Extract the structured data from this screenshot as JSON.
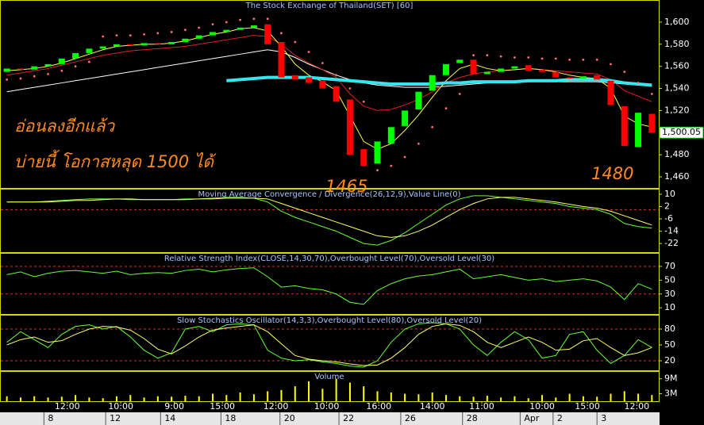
{
  "chart_data": [
    {
      "type": "candlestick",
      "title": "The Stock Exchange of Thailand(SET) [60]",
      "xlim": [
        -0.5,
        47.5
      ],
      "open": [
        1555,
        1558,
        1557,
        1560,
        1562,
        1567,
        1572,
        1576,
        1578,
        1580,
        1579,
        1581,
        1580,
        1582,
        1585,
        1588,
        1591,
        1593,
        1595,
        1598,
        1582,
        1552,
        1550,
        1547,
        1542,
        1530,
        1485,
        1472,
        1490,
        1506,
        1521,
        1538,
        1552,
        1563,
        1566,
        1553,
        1555,
        1558,
        1561,
        1557,
        1555,
        1550,
        1549,
        1552,
        1547,
        1524,
        1487,
        1517
      ],
      "close": [
        1558,
        1557,
        1560,
        1562,
        1567,
        1572,
        1576,
        1578,
        1580,
        1579,
        1581,
        1580,
        1582,
        1585,
        1588,
        1591,
        1593,
        1595,
        1597,
        1580,
        1550,
        1548,
        1545,
        1540,
        1528,
        1480,
        1470,
        1492,
        1505,
        1520,
        1537,
        1552,
        1562,
        1566,
        1553,
        1555,
        1558,
        1560,
        1556,
        1555,
        1550,
        1549,
        1551,
        1548,
        1525,
        1488,
        1518,
        1500
      ],
      "up_color": "#00ff00",
      "down_color": "#ff0000",
      "series": [
        {
          "color": "#ffffff",
          "values": [
            1537,
            1539,
            1541,
            1543,
            1545,
            1547,
            1549,
            1551,
            1553,
            1555,
            1557,
            1559,
            1561,
            1563,
            1565,
            1567,
            1569,
            1571,
            1573,
            1575,
            1573,
            1568,
            1562,
            1557,
            1552,
            1548,
            1545,
            1543,
            1542,
            1541,
            1541,
            1541,
            1542,
            1543,
            1544,
            1545,
            1545,
            1546,
            1546,
            1546,
            1546,
            1546,
            1546,
            1546,
            1545,
            1544,
            1543,
            1542
          ]
        },
        {
          "color": "#e02020",
          "values": [
            1552,
            1554,
            1556,
            1558,
            1561,
            1564,
            1567,
            1570,
            1572,
            1574,
            1575,
            1576,
            1577,
            1578,
            1580,
            1582,
            1584,
            1586,
            1588,
            1587,
            1580,
            1570,
            1563,
            1557,
            1550,
            1535,
            1524,
            1520,
            1521,
            1525,
            1530,
            1537,
            1545,
            1550,
            1553,
            1555,
            1556,
            1557,
            1558,
            1557,
            1556,
            1555,
            1554,
            1553,
            1548,
            1538,
            1533,
            1528
          ]
        },
        {
          "color": "#ffff40",
          "values": [
            1556,
            1557,
            1558,
            1560,
            1563,
            1567,
            1571,
            1575,
            1578,
            1579,
            1580,
            1580,
            1581,
            1583,
            1586,
            1589,
            1591,
            1594,
            1595,
            1592,
            1578,
            1562,
            1552,
            1546,
            1538,
            1515,
            1492,
            1485,
            1490,
            1502,
            1516,
            1532,
            1547,
            1558,
            1562,
            1558,
            1556,
            1557,
            1558,
            1557,
            1555,
            1552,
            1550,
            1549,
            1540,
            1515,
            1508,
            1505
          ]
        },
        {
          "color": "#33e6f0",
          "width": 4,
          "values": [
            null,
            null,
            null,
            null,
            null,
            null,
            null,
            null,
            null,
            null,
            null,
            null,
            null,
            null,
            null,
            null,
            1547,
            1548,
            1549,
            1550,
            1550,
            1550,
            1550,
            1549,
            1548,
            1547,
            1546,
            1545,
            1544,
            1544,
            1544,
            1544,
            1545,
            1545,
            1546,
            1546,
            1546,
            1546,
            1547,
            1547,
            1547,
            1548,
            1548,
            1548,
            1547,
            1545,
            1544,
            1543
          ]
        },
        {
          "color": "#ff7070",
          "style": "dots",
          "values": [
            1548,
            1549,
            1551,
            1553,
            1556,
            1560,
            1564,
            1587,
            1588,
            1588,
            1589,
            1590,
            1591,
            1593,
            1595,
            1598,
            1600,
            1602,
            1603,
            1603,
            1590,
            1582,
            1573,
            1563,
            1552,
            1540,
            1528,
            1466,
            1470,
            1478,
            1490,
            1505,
            1522,
            1535,
            1570,
            1570,
            1569,
            1568,
            1568,
            1567,
            1567,
            1566,
            1566,
            1566,
            1562,
            1555,
            1545,
            1535
          ]
        }
      ],
      "ylim": [
        1450,
        1620
      ],
      "yticks": [
        {
          "value": 1600,
          "label": "1,600"
        },
        {
          "value": 1580,
          "label": "1,580"
        },
        {
          "value": 1560,
          "label": "1,560"
        },
        {
          "value": 1540,
          "label": "1,540"
        },
        {
          "value": 1520,
          "label": "1,520"
        },
        {
          "value": 1500,
          "label": "1,500"
        },
        {
          "value": 1480,
          "label": "1,480"
        },
        {
          "value": 1460,
          "label": "1,460"
        }
      ],
      "last_price": {
        "value": 1500.05,
        "label": "1,500.05"
      },
      "annotations": [
        "อ่อนลงอีกแล้ว",
        "บ่ายนี้ โอกาสหลุด 1500 ได้",
        "1465",
        "1480"
      ]
    },
    {
      "type": "line",
      "title": "Moving Average Convergence / Divergence(26,12,9),Value Line(0)",
      "xlim": [
        -0.5,
        47.5
      ],
      "series": [
        {
          "color": "#66ff33",
          "values": [
            5,
            5,
            5,
            5.5,
            6,
            6.5,
            7,
            7,
            7,
            6.5,
            6.5,
            6.5,
            6.5,
            7,
            7,
            7.5,
            8,
            8,
            7.5,
            5,
            -1,
            -5,
            -8,
            -11,
            -14,
            -18,
            -22,
            -23,
            -20,
            -15,
            -9,
            -3,
            3,
            7,
            9,
            9,
            8,
            7,
            6,
            5,
            4,
            2,
            1,
            0,
            -3,
            -9,
            -11,
            -12
          ]
        },
        {
          "color": "#ffff66",
          "values": [
            5,
            5,
            5,
            5,
            5.5,
            6,
            6,
            6.5,
            7,
            7,
            6.5,
            6.5,
            6.5,
            6.5,
            7,
            7,
            7.5,
            7.5,
            7.5,
            7,
            4,
            1,
            -2,
            -5,
            -8,
            -11,
            -14,
            -17,
            -18,
            -17,
            -14,
            -10,
            -5,
            0,
            4,
            7,
            8,
            8,
            7,
            6,
            5,
            3.5,
            2,
            1,
            -1,
            -4,
            -7,
            -10
          ]
        }
      ],
      "levels": [
        0
      ],
      "ylim": [
        -27.6,
        13.6
      ],
      "yticks": [
        10,
        2,
        -6,
        -14,
        -22
      ]
    },
    {
      "type": "line",
      "title": "Relative Strength Index(CLOSE,14,30,70),Overbought Level(70),Oversold Level(30)",
      "xlim": [
        -0.5,
        47.5
      ],
      "series": [
        {
          "color": "#66ff33",
          "values": [
            58,
            62,
            55,
            60,
            63,
            64,
            62,
            60,
            63,
            58,
            60,
            61,
            60,
            64,
            66,
            62,
            65,
            67,
            68,
            55,
            40,
            42,
            38,
            36,
            30,
            18,
            15,
            35,
            45,
            52,
            56,
            58,
            62,
            66,
            52,
            55,
            58,
            54,
            50,
            52,
            48,
            50,
            52,
            49,
            40,
            22,
            45,
            37
          ]
        }
      ],
      "levels": [
        70,
        30
      ],
      "ylim": [
        1,
        89.5
      ],
      "yticks": [
        70,
        50,
        30,
        10
      ]
    },
    {
      "type": "line",
      "title": "Slow Stochastics Oscillator(14,3,3),Overbought Level(80),Oversold Level(20)",
      "xlim": [
        -0.5,
        47.5
      ],
      "series": [
        {
          "color": "#66ff33",
          "values": [
            55,
            75,
            60,
            45,
            70,
            85,
            88,
            80,
            85,
            65,
            40,
            25,
            35,
            80,
            85,
            75,
            88,
            90,
            88,
            40,
            25,
            20,
            22,
            18,
            15,
            10,
            8,
            20,
            55,
            80,
            90,
            92,
            90,
            80,
            50,
            30,
            55,
            75,
            60,
            25,
            30,
            70,
            75,
            40,
            15,
            30,
            60,
            45
          ]
        },
        {
          "color": "#ffff66",
          "values": [
            50,
            60,
            65,
            55,
            58,
            70,
            80,
            85,
            84,
            78,
            62,
            42,
            33,
            48,
            65,
            78,
            82,
            85,
            88,
            75,
            52,
            30,
            23,
            20,
            18,
            14,
            11,
            12,
            25,
            45,
            70,
            85,
            90,
            87,
            75,
            55,
            45,
            55,
            65,
            55,
            40,
            42,
            58,
            62,
            45,
            30,
            35,
            45
          ]
        }
      ],
      "levels": [
        80,
        20
      ],
      "ylim": [
        2,
        107
      ],
      "yticks": [
        80,
        50,
        20
      ]
    },
    {
      "type": "bar",
      "title": "Volume",
      "color": "#ffff00",
      "xlim": [
        -0.5,
        47.5
      ],
      "values": [
        2,
        1.5,
        2,
        1.5,
        1.8,
        2.5,
        1.5,
        1.2,
        2,
        2.5,
        1.5,
        2,
        1.8,
        2.2,
        2,
        3,
        2.5,
        3.5,
        2.8,
        4,
        4.5,
        6,
        8,
        5,
        9,
        7.5,
        6,
        4,
        3.5,
        3,
        2.8,
        3.5,
        2.5,
        2,
        1.8,
        2.2,
        1.5,
        2,
        1.2,
        2.5,
        1.5,
        3,
        2,
        1.8,
        3,
        4,
        3,
        2.5
      ],
      "ylim": [
        0,
        12.1
      ],
      "yticks": [
        {
          "value": 9,
          "label": "9M"
        },
        {
          "value": 3,
          "label": "3M"
        }
      ],
      "xticks": [
        {
          "value": 4.4,
          "label": "12:00"
        },
        {
          "value": 8.3,
          "label": "10:00"
        },
        {
          "value": 12.2,
          "label": "9:00"
        },
        {
          "value": 15.7,
          "label": "15:00"
        },
        {
          "value": 19.6,
          "label": "12:00"
        },
        {
          "value": 23.3,
          "label": "10:00"
        },
        {
          "value": 27.1,
          "label": "16:00"
        },
        {
          "value": 31.0,
          "label": "14:00"
        },
        {
          "value": 34.6,
          "label": "11:00"
        },
        {
          "value": 39.0,
          "label": "10:00"
        },
        {
          "value": 42.3,
          "label": "15:00"
        },
        {
          "value": 45.9,
          "label": "12:00"
        }
      ],
      "date_ticks": [
        {
          "value": 2.7,
          "label": "8"
        },
        {
          "value": 7.2,
          "label": "12"
        },
        {
          "value": 11.2,
          "label": "14"
        },
        {
          "value": 15.6,
          "label": "18"
        },
        {
          "value": 19.9,
          "label": "20"
        },
        {
          "value": 24.2,
          "label": "22"
        },
        {
          "value": 28.7,
          "label": "26"
        },
        {
          "value": 33.2,
          "label": "28"
        },
        {
          "value": 37.4,
          "label": "Apr"
        },
        {
          "value": 39.8,
          "label": "2"
        },
        {
          "value": 43.0,
          "label": "3"
        }
      ]
    }
  ]
}
